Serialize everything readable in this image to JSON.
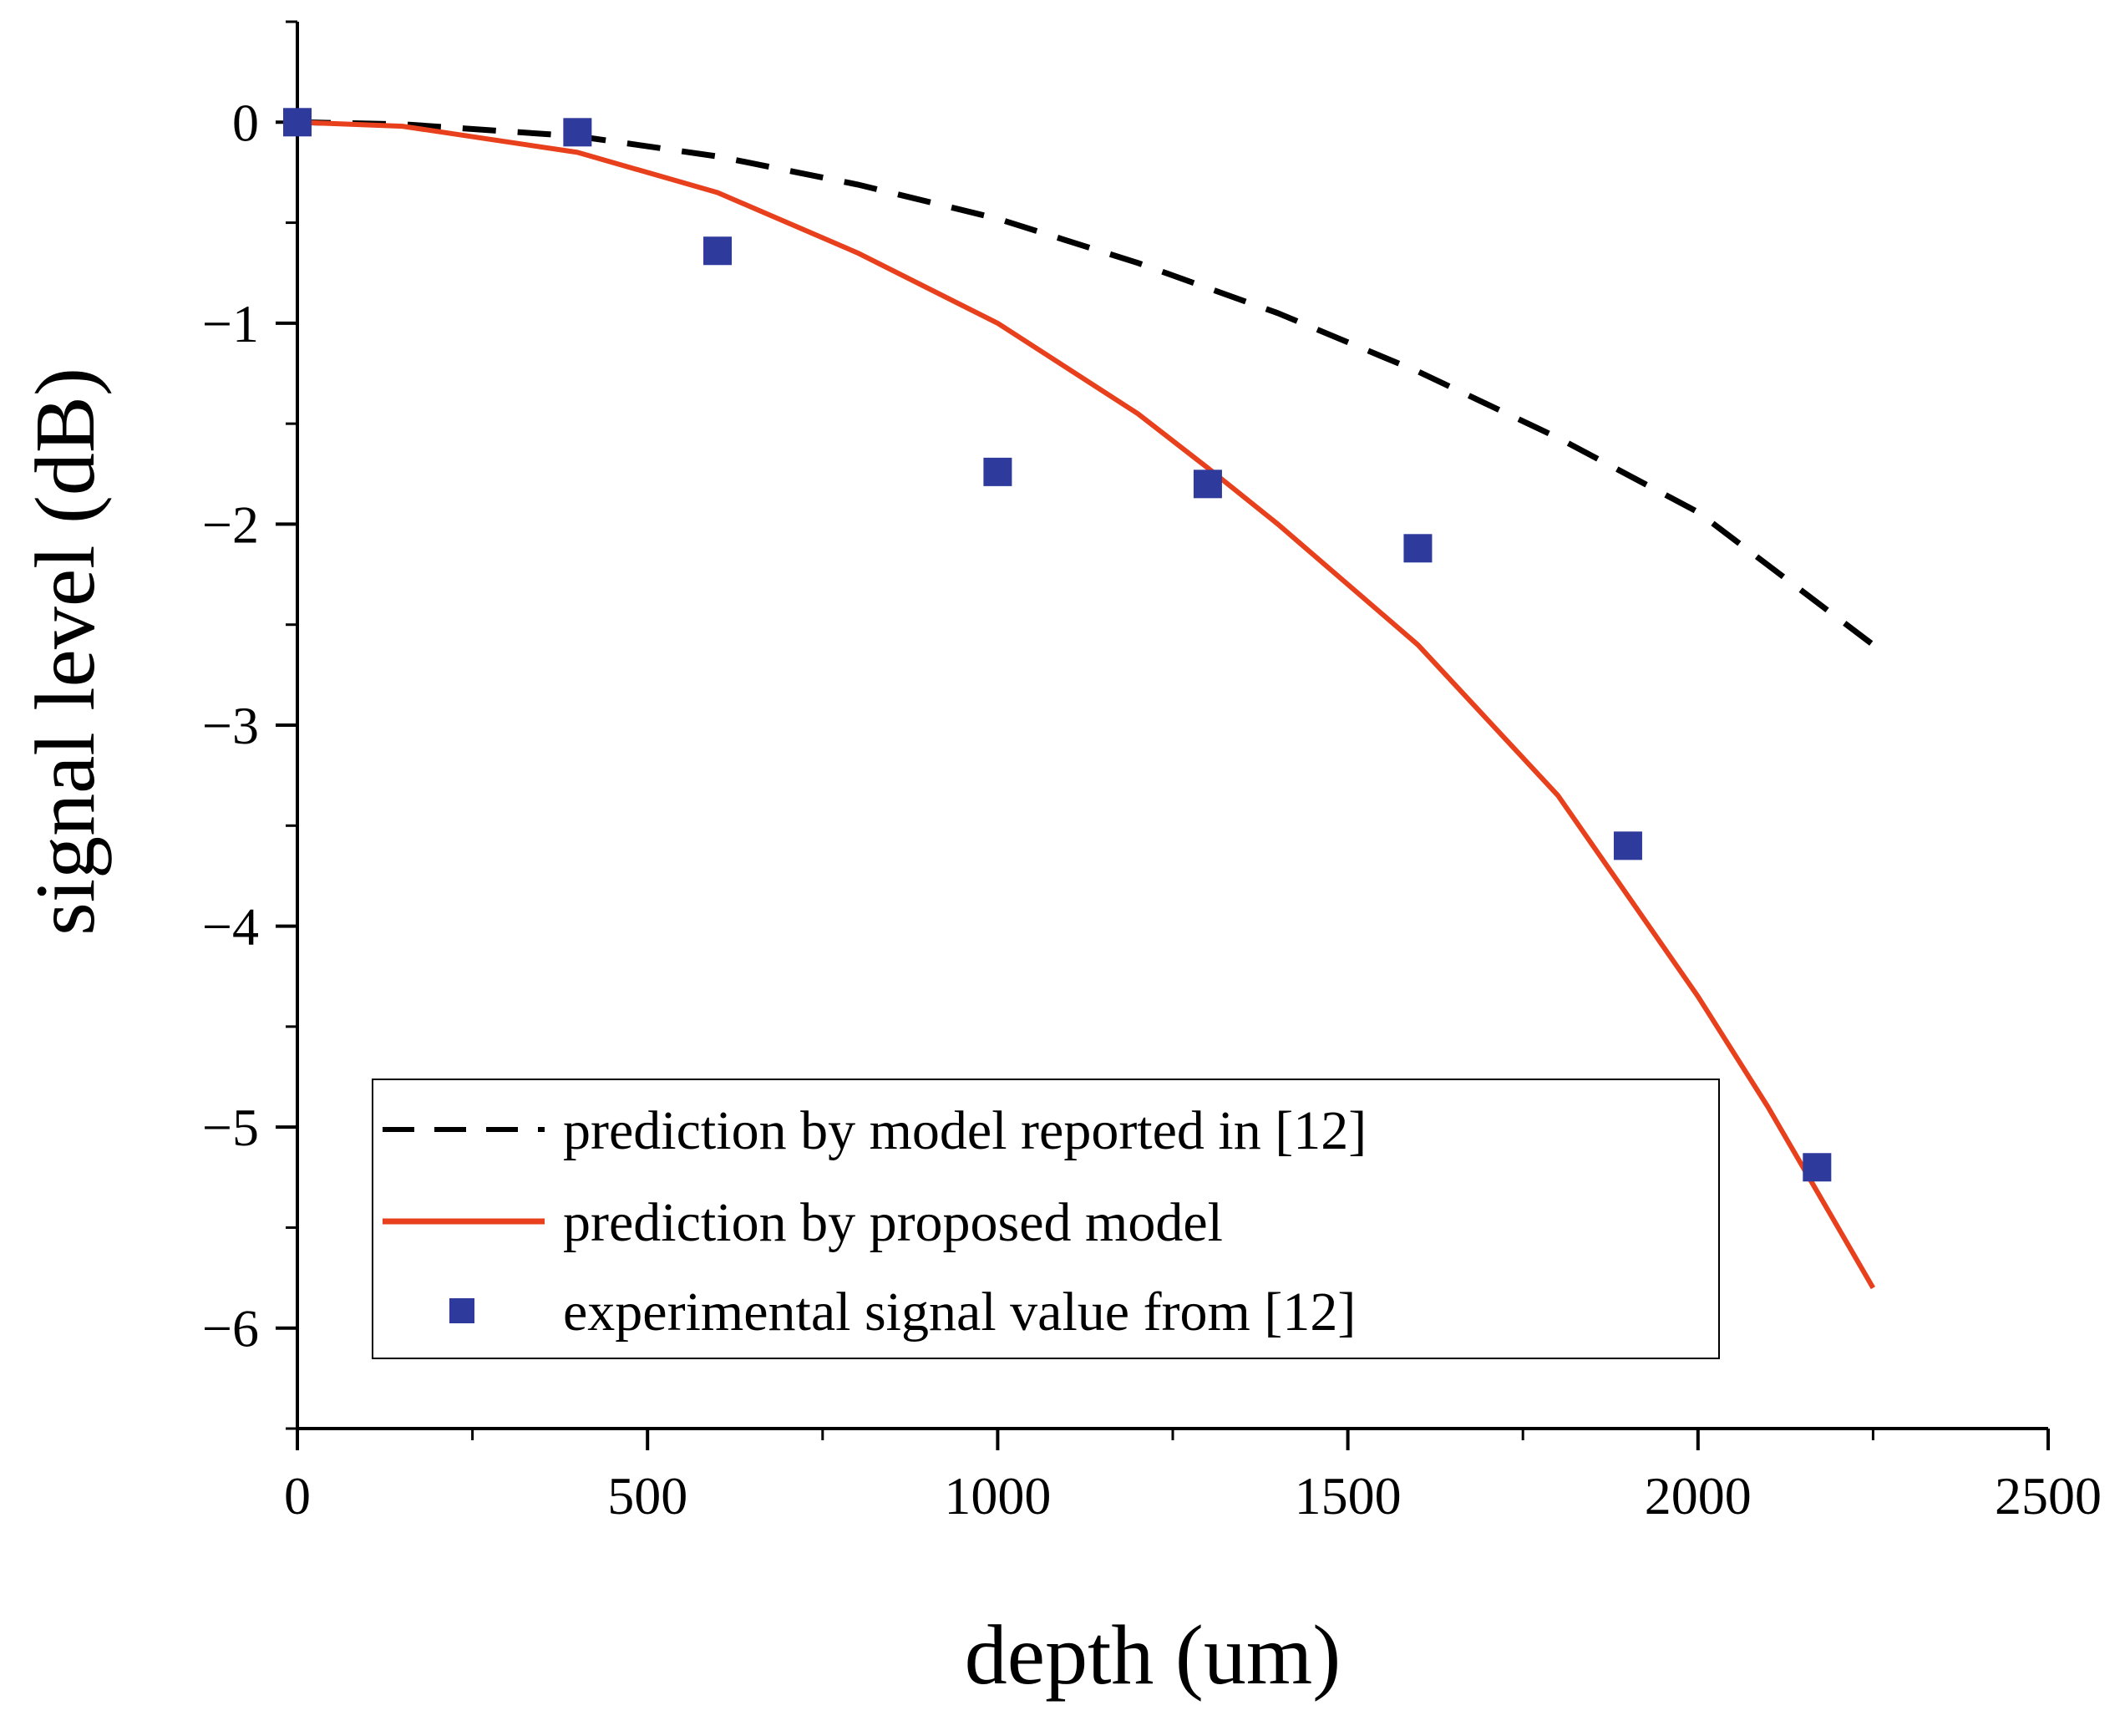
{
  "chart_data": {
    "type": "line",
    "title": "",
    "xlabel": "depth (um)",
    "ylabel": "signal level (dB)",
    "xlim": [
      0,
      2500
    ],
    "ylim": [
      -6.5,
      0.5
    ],
    "x_ticks": [
      0,
      500,
      1000,
      1500,
      2000,
      2500
    ],
    "x_tick_labels": [
      "0",
      "500",
      "1000",
      "1500",
      "2000",
      "2500"
    ],
    "y_ticks": [
      0,
      -1,
      -2,
      -3,
      -4,
      -5,
      -6
    ],
    "y_tick_labels": [
      "0",
      "−1",
      "−2",
      "−3",
      "−4",
      "−5",
      "−6"
    ],
    "grid": false,
    "legend_position": "bottom-center",
    "series": [
      {
        "name": "prediction by model reported in [12]",
        "kind": "line",
        "style": "dashed",
        "color": "#000000",
        "x": [
          0,
          150,
          400,
          600,
          800,
          1000,
          1200,
          1400,
          1600,
          1800,
          2000,
          2250
        ],
        "values": [
          0,
          -0.01,
          -0.07,
          -0.17,
          -0.31,
          -0.48,
          -0.7,
          -0.95,
          -1.24,
          -1.57,
          -1.94,
          -2.6
        ]
      },
      {
        "name": "prediction by proposed model",
        "kind": "line",
        "style": "solid",
        "color": "#e8401c",
        "x": [
          0,
          150,
          400,
          600,
          800,
          1000,
          1200,
          1300,
          1400,
          1600,
          1800,
          1900,
          2000,
          2100,
          2200,
          2250
        ],
        "values": [
          0,
          -0.02,
          -0.15,
          -0.35,
          -0.65,
          -1.0,
          -1.45,
          -1.72,
          -2.0,
          -2.6,
          -3.35,
          -3.85,
          -4.35,
          -4.9,
          -5.5,
          -5.8
        ]
      },
      {
        "name": "experimental signal value from [12]",
        "kind": "scatter",
        "marker": "square",
        "color": "#2e3a9c",
        "x": [
          0,
          400,
          600,
          1000,
          1300,
          1600,
          1900,
          2170
        ],
        "values": [
          0,
          -0.05,
          -0.64,
          -1.74,
          -1.8,
          -2.12,
          -3.6,
          -5.2
        ]
      }
    ]
  }
}
